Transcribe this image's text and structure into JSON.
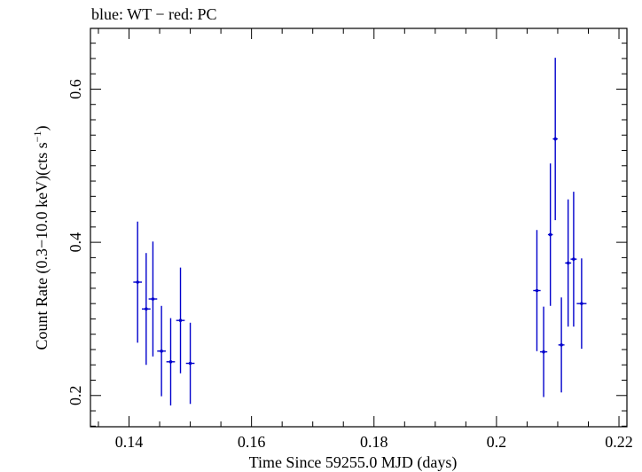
{
  "chart_data": {
    "type": "scatter",
    "title": "blue: WT − red: PC",
    "xlabel": "Time Since 59255.0 MJD (days)",
    "ylabel_main": "Count Rate (0.3−10.0 keV)(cts s",
    "ylabel_sup": "−1",
    "ylabel_close": ")",
    "xlim": [
      0.1337,
      0.2213
    ],
    "ylim": [
      0.1592,
      0.6793
    ],
    "x_ticks": [
      0.14,
      0.16,
      0.18,
      0.2,
      0.22
    ],
    "x_tick_labels": [
      "0.14",
      "0.16",
      "0.18",
      "0.2",
      "0.22"
    ],
    "y_ticks": [
      0.2,
      0.4,
      0.6
    ],
    "y_tick_labels": [
      "0.2",
      "0.4",
      "0.6"
    ],
    "grid": false,
    "colors": {
      "WT": "#0000cc",
      "PC": "#cc0000",
      "axis": "#000000"
    },
    "series": [
      {
        "name": "WT",
        "points": [
          {
            "x": 0.1414,
            "xerr": 0.0007,
            "y": 0.348,
            "yerr": 0.079
          },
          {
            "x": 0.1428,
            "xerr": 0.0007,
            "y": 0.313,
            "yerr": 0.073
          },
          {
            "x": 0.1439,
            "xerr": 0.0007,
            "y": 0.326,
            "yerr": 0.075
          },
          {
            "x": 0.1453,
            "xerr": 0.0007,
            "y": 0.258,
            "yerr": 0.059
          },
          {
            "x": 0.1468,
            "xerr": 0.0007,
            "y": 0.244,
            "yerr": 0.057
          },
          {
            "x": 0.1484,
            "xerr": 0.0007,
            "y": 0.298,
            "yerr": 0.069
          },
          {
            "x": 0.15,
            "xerr": 0.0007,
            "y": 0.242,
            "yerr": 0.053
          },
          {
            "x": 0.2066,
            "xerr": 0.0006,
            "y": 0.337,
            "yerr": 0.079
          },
          {
            "x": 0.2077,
            "xerr": 0.0006,
            "y": 0.257,
            "yerr": 0.059
          },
          {
            "x": 0.2088,
            "xerr": 0.0004,
            "y": 0.41,
            "yerr": 0.093
          },
          {
            "x": 0.2096,
            "xerr": 0.0004,
            "y": 0.535,
            "yerr": 0.106
          },
          {
            "x": 0.2106,
            "xerr": 0.0005,
            "y": 0.266,
            "yerr": 0.062
          },
          {
            "x": 0.2117,
            "xerr": 0.0005,
            "y": 0.373,
            "yerr": 0.083
          },
          {
            "x": 0.2126,
            "xerr": 0.0005,
            "y": 0.378,
            "yerr": 0.088
          },
          {
            "x": 0.2139,
            "xerr": 0.0008,
            "y": 0.32,
            "yerr": 0.059
          }
        ]
      }
    ]
  }
}
